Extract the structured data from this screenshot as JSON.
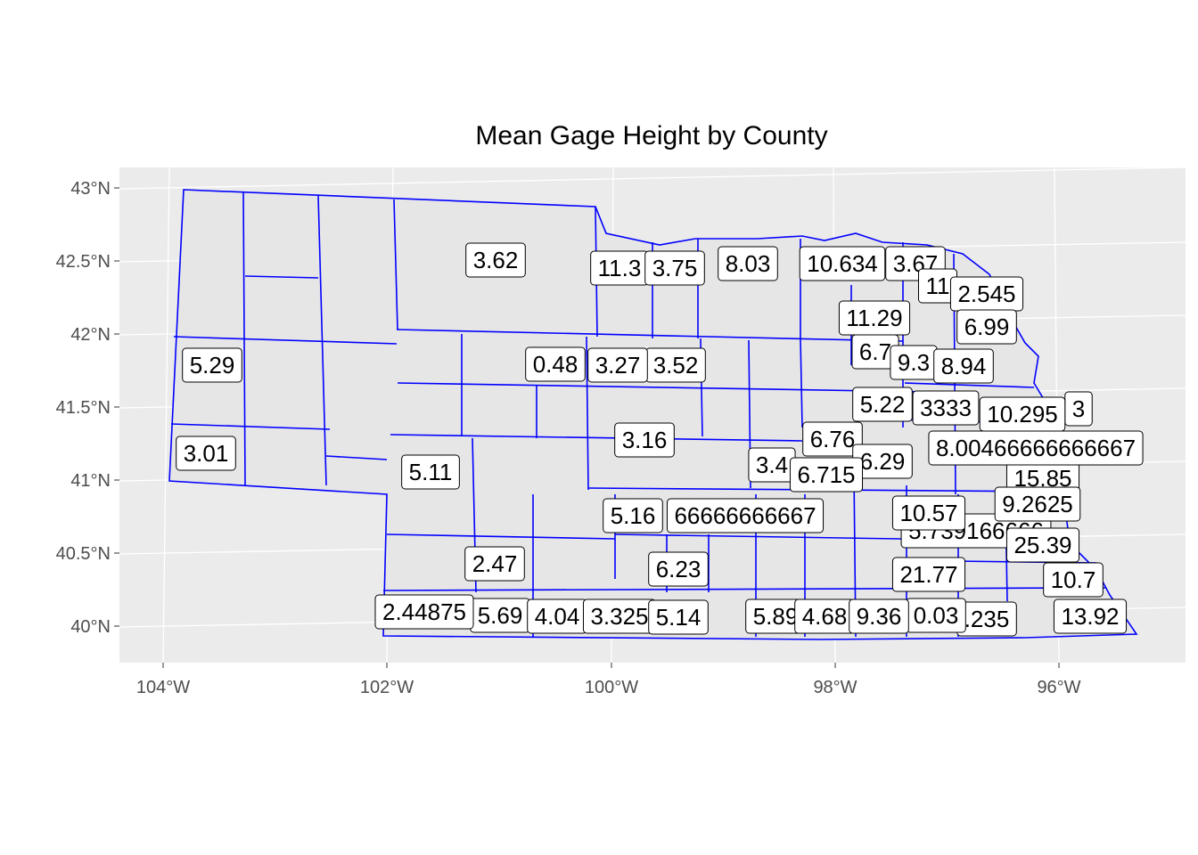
{
  "title": "Mean Gage Height by County",
  "colors": {
    "panel": "#ebebeb",
    "grid": "#ffffff",
    "state_fill": "#e6e6e6",
    "border": "#0000ff",
    "label_border": "#000000"
  },
  "axes": {
    "y_ticks": [
      "43°N",
      "42.5°N",
      "42°N",
      "41.5°N",
      "41°N",
      "40.5°N",
      "40°N"
    ],
    "x_ticks": [
      "104°W",
      "102°W",
      "100°W",
      "98°W",
      "96°W"
    ]
  },
  "labels": [
    "3.62",
    "11.3",
    "3.75",
    "8.03",
    "10.634",
    "3.67",
    "11",
    "2.545",
    "11.29",
    "6.99",
    "5.29",
    "0.48",
    "3.27",
    "3.52",
    "6.7",
    "9.3",
    "8.94",
    "5.22",
    "3333",
    "10.295",
    "3",
    "3.16",
    "6.76",
    "8.00466666666667",
    "3.01",
    "5.11",
    "3.4",
    "6.715",
    "6.29",
    "15.85",
    "5.16",
    "66666666667",
    "10.57",
    "9.2625",
    "5.739166666",
    "25.39",
    "2.47",
    "6.23",
    "21.77",
    "10.7",
    "2.44875",
    "5.69",
    "4.04",
    "3.325",
    "5.14",
    "5.89",
    "4.68",
    "9.36",
    "0.03",
    ".235",
    "13.92"
  ]
}
